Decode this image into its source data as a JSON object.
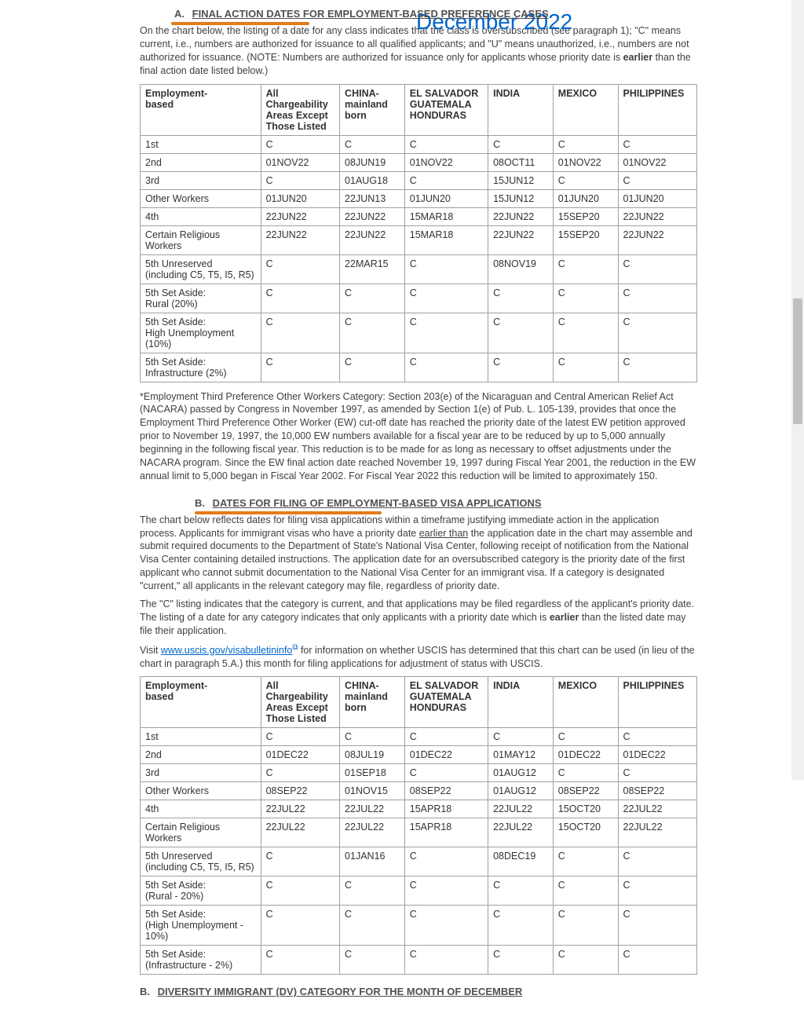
{
  "overlay_date": "December 2022",
  "sectionA": {
    "letter": "A.",
    "title": "FINAL ACTION DATES FOR EMPLOYMENT-BASED PREFERENCE CASES",
    "para_pre": "On the chart below, the listing of a date for any class indicates that the class is oversubscribed (see paragraph 1); \"C\" means current, i.e., numbers are authorized for issuance to all qualified applicants; and \"U\" means unauthorized, i.e., numbers are not authorized for issuance. (NOTE: Numbers are authorized for issuance only for applicants whose priority date is ",
    "para_bold": "earlier",
    "para_post": " than the final action date listed below.)"
  },
  "tableA": {
    "col_widths": [
      "130px",
      "85px",
      "70px",
      "90px",
      "70px",
      "70px",
      "85px"
    ],
    "headers": [
      "Employment-\nbased",
      "All Chargeability Areas Except Those Listed",
      "CHINA-mainland born",
      "EL SALVADOR GUATEMALA HONDURAS",
      "INDIA",
      "MEXICO",
      "PHILIPPINES"
    ],
    "rows": [
      [
        "1st",
        "C",
        "C",
        "C",
        "C",
        "C",
        "C"
      ],
      [
        "2nd",
        "01NOV22",
        "08JUN19",
        "01NOV22",
        "08OCT11",
        "01NOV22",
        "01NOV22"
      ],
      [
        "3rd",
        "C",
        "01AUG18",
        "C",
        "15JUN12",
        "C",
        "C"
      ],
      [
        "Other Workers",
        "01JUN20",
        "22JUN13",
        "01JUN20",
        "15JUN12",
        "01JUN20",
        "01JUN20"
      ],
      [
        "4th",
        "22JUN22",
        "22JUN22",
        "15MAR18",
        "22JUN22",
        "15SEP20",
        "22JUN22"
      ],
      [
        "Certain Religious Workers",
        "22JUN22",
        "22JUN22",
        "15MAR18",
        "22JUN22",
        "15SEP20",
        "22JUN22"
      ],
      [
        "5th Unreserved\n(including C5, T5, I5, R5)",
        "C",
        "22MAR15",
        "C",
        "08NOV19",
        "C",
        "C"
      ],
      [
        "5th Set Aside:\nRural (20%)",
        "C",
        "C",
        "C",
        "C",
        "C",
        "C"
      ],
      [
        "5th Set Aside:\nHigh Unemployment (10%)",
        "C",
        "C",
        "C",
        "C",
        "C",
        "C"
      ],
      [
        "5th Set Aside:\nInfrastructure (2%)",
        "C",
        "C",
        "C",
        "C",
        "C",
        "C"
      ]
    ]
  },
  "footnoteA": "*Employment Third Preference Other Workers Category:  Section 203(e) of the Nicaraguan and Central American Relief Act (NACARA) passed by Congress in November 1997, as amended by Section 1(e) of Pub. L. 105-139, provides that once the Employment Third Preference Other Worker (EW) cut-off date has reached the priority date of the latest EW petition approved prior to November 19, 1997, the 10,000 EW numbers available for a fiscal year are to be reduced by up to 5,000 annually beginning in the following fiscal year. This reduction is to be made for as long as necessary to offset adjustments under the NACARA program. Since the EW final action date reached November 19, 1997 during Fiscal Year 2001, the reduction in the EW annual limit to 5,000 began in Fiscal Year 2002. For Fiscal Year 2022 this reduction will be limited to approximately 150.",
  "sectionB": {
    "letter": "B.",
    "title": "DATES FOR FILING OF EMPLOYMENT-BASED VISA APPLICATIONS",
    "para1_pre": "The chart below reflects dates for filing visa applications within a timeframe justifying immediate action in the application process. Applicants for immigrant visas who have a priority date ",
    "para1_u": "earlier than",
    "para1_post": " the application date in the chart may assemble and submit required documents to the Department of State's National Visa Center, following receipt of notification from the National Visa Center containing detailed instructions. The application date for an oversubscribed category is the priority date of the first applicant who cannot submit documentation to the National Visa Center for an immigrant visa. If a category is designated \"current,\" all applicants in the relevant category may file, regardless of priority date.",
    "para2_pre": "The \"C\" listing indicates that the category is current, and that applications may be filed regardless of the applicant's priority date. The listing of a date for any category indicates that only applicants with a priority date which is ",
    "para2_bold": "earlier",
    "para2_post": " than the listed date may file their application.",
    "para3_pre": "Visit ",
    "para3_link": "www.uscis.gov/visabulletininfo",
    "para3_post": " for information on whether USCIS has determined that this chart can be used (in lieu of the chart in paragraph 5.A.) this month for filing applications for adjustment of status with USCIS."
  },
  "tableB": {
    "col_widths": [
      "130px",
      "85px",
      "70px",
      "90px",
      "70px",
      "70px",
      "85px"
    ],
    "headers": [
      "Employment-\nbased",
      "All Chargeability Areas Except Those Listed",
      "CHINA-mainland born",
      "EL SALVADOR GUATEMALA HONDURAS",
      "INDIA",
      "MEXICO",
      "PHILIPPINES"
    ],
    "rows": [
      [
        "1st",
        "C",
        "C",
        "C",
        "C",
        "C",
        "C"
      ],
      [
        "2nd",
        "01DEC22",
        "08JUL19",
        "01DEC22",
        "01MAY12",
        "01DEC22",
        "01DEC22"
      ],
      [
        "3rd",
        "C",
        "01SEP18",
        "C",
        "01AUG12",
        "C",
        "C"
      ],
      [
        "Other Workers",
        "08SEP22",
        "01NOV15",
        "08SEP22",
        "01AUG12",
        "08SEP22",
        "08SEP22"
      ],
      [
        "4th",
        "22JUL22",
        "22JUL22",
        "15APR18",
        "22JUL22",
        "15OCT20",
        "22JUL22"
      ],
      [
        "Certain Religious Workers",
        "22JUL22",
        "22JUL22",
        "15APR18",
        "22JUL22",
        "15OCT20",
        "22JUL22"
      ],
      [
        "5th Unreserved\n(including C5, T5, I5, R5)",
        "C",
        "01JAN16",
        "C",
        "08DEC19",
        "C",
        "C"
      ],
      [
        "5th Set Aside:\n(Rural - 20%)",
        "C",
        "C",
        "C",
        "C",
        "C",
        "C"
      ],
      [
        "5th Set Aside:\n(High Unemployment - 10%)",
        "C",
        "C",
        "C",
        "C",
        "C",
        "C"
      ],
      [
        "5th Set Aside:\n(Infrastructure - 2%)",
        "C",
        "C",
        "C",
        "C",
        "C",
        "C"
      ]
    ]
  },
  "sectionC": {
    "letter": "B.",
    "title": "DIVERSITY IMMIGRANT (DV) CATEGORY FOR THE MONTH OF DECEMBER"
  },
  "colors": {
    "overlay": "#0066cc",
    "underline": "#e67a1a",
    "border": "#a0a0a0",
    "text": "#404040"
  }
}
